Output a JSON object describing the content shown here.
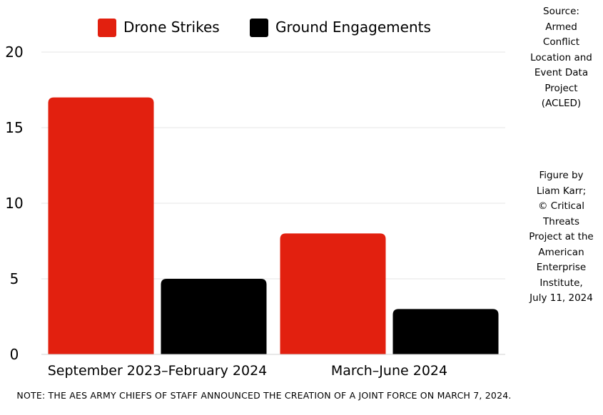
{
  "chart_data": {
    "type": "bar",
    "categories": [
      "September 2023–February 2024",
      "March–June 2024"
    ],
    "series": [
      {
        "name": "Drone Strikes",
        "values": [
          17,
          8
        ],
        "color": "#e2200f"
      },
      {
        "name": "Ground Engagements",
        "values": [
          5,
          3
        ],
        "color": "#000000"
      }
    ],
    "ylim": [
      0,
      20
    ],
    "yticks": [
      0,
      5,
      10,
      15,
      20
    ],
    "grid": true,
    "legend_position": "top"
  },
  "source_note": "Source:\nArmed\nConflict\nLocation and\nEvent Data\nProject\n(ACLED)",
  "credit_note": "Figure by\nLiam Karr;\n© Critical\nThreats\nProject at the\nAmerican\nEnterprise\nInstitute,\nJuly 11, 2024",
  "footnote": "NOTE: THE AES ARMY CHIEFS OF STAFF ANNOUNCED THE CREATION OF A JOINT FORCE ON MARCH 7, 2024."
}
